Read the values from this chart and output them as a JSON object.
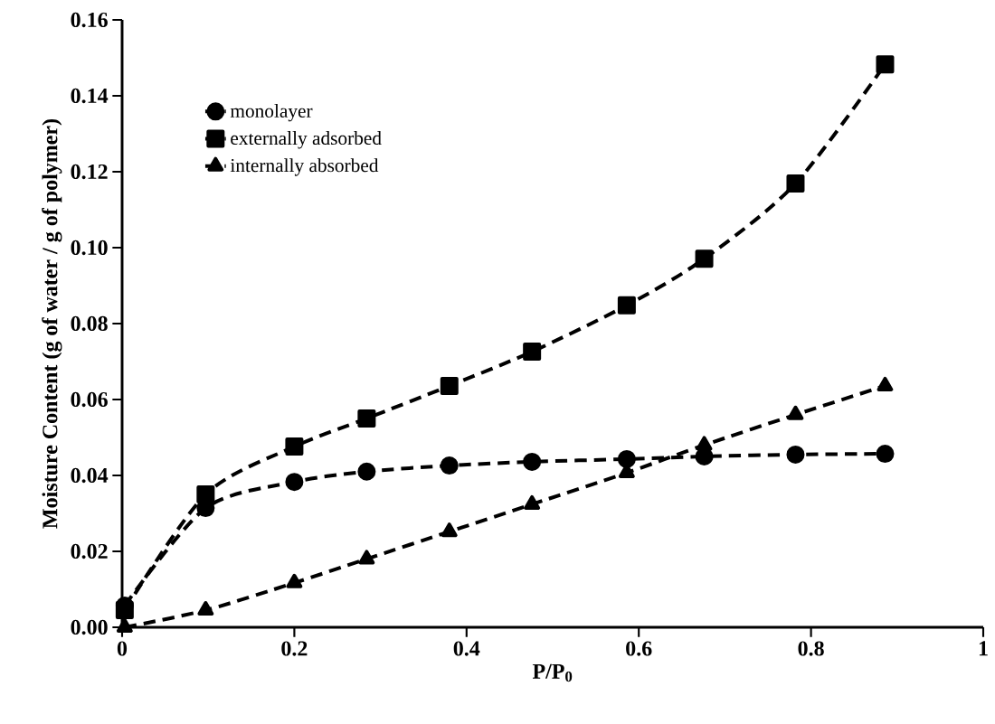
{
  "chart_data": {
    "type": "line",
    "xlabel": "P/P$_{0}$",
    "ylabel": "Moisture Content (g of water / g of polymer)",
    "xlim": [
      0,
      1
    ],
    "xticks": [
      0,
      0.2,
      0.4,
      0.6,
      0.8,
      1
    ],
    "ylim": [
      0,
      0.16
    ],
    "yticks": [
      {
        "value": 0,
        "label": "0.00"
      },
      {
        "value": 0.02,
        "label": "0.02"
      },
      {
        "value": 0.04,
        "label": "0.04"
      },
      {
        "value": 0.06,
        "label": "0.06"
      },
      {
        "value": 0.08,
        "label": "0.08"
      },
      {
        "value": 0.1,
        "label": "0.10"
      },
      {
        "value": 0.12,
        "label": "0.12"
      },
      {
        "value": 0.14,
        "label": "0.14"
      },
      {
        "value": 0.16,
        "label": "0.16"
      }
    ],
    "x": [
      0.003,
      0.097,
      0.2,
      0.284,
      0.38,
      0.476,
      0.586,
      0.676,
      0.782,
      0.886
    ],
    "series": [
      {
        "name": "monolayer",
        "color": "#000000",
        "marker": "circle",
        "line_style": "dashed",
        "values": [
          0.0057,
          0.0314,
          0.0383,
          0.041,
          0.0426,
          0.0436,
          0.0443,
          0.045,
          0.0455,
          0.0457
        ]
      },
      {
        "name": "externally adsorbed",
        "color": "#000000",
        "marker": "square",
        "line_style": "dashed",
        "values": [
          0.0045,
          0.035,
          0.0476,
          0.055,
          0.0636,
          0.0726,
          0.0848,
          0.0971,
          0.1169,
          0.1483
        ]
      },
      {
        "name": "internally absorbed",
        "color": "#000000",
        "marker": "triangle",
        "line_style": "dashed",
        "values": [
          0.0,
          0.0045,
          0.0117,
          0.018,
          0.0252,
          0.0324,
          0.0407,
          0.048,
          0.056,
          0.0636
        ]
      }
    ],
    "legend": "top left",
    "grid": false
  }
}
